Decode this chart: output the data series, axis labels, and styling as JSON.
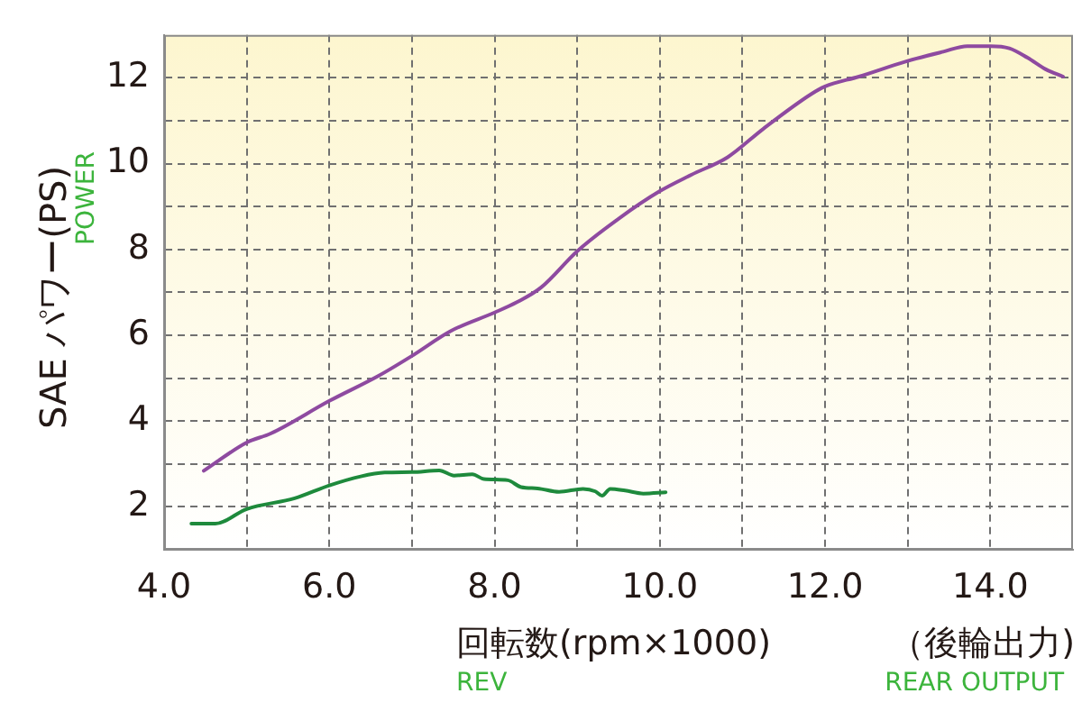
{
  "chart_data": {
    "type": "line",
    "ylabel": "SAE パワー(PS)",
    "xlabel": "回転数(rpm×1000)",
    "annotations": [
      "POWER",
      "（後輪出力)",
      "REV",
      "REAR OUTPUT"
    ],
    "xlim": [
      4,
      15
    ],
    "ylim": [
      1,
      13
    ],
    "xticks": [
      {
        "value": 4,
        "label": "4.0"
      },
      {
        "value": 5,
        "label": null
      },
      {
        "value": 6,
        "label": "6.0"
      },
      {
        "value": 7,
        "label": null
      },
      {
        "value": 8,
        "label": "8.0"
      },
      {
        "value": 9,
        "label": null
      },
      {
        "value": 10,
        "label": "10.0"
      },
      {
        "value": 11,
        "label": null
      },
      {
        "value": 12,
        "label": "12.0"
      },
      {
        "value": 13,
        "label": null
      },
      {
        "value": 14,
        "label": "14.0"
      }
    ],
    "yticks": [
      {
        "value": 1,
        "label": null
      },
      2,
      {
        "value": 3,
        "label": null
      },
      4,
      {
        "value": 5,
        "label": null
      },
      6,
      {
        "value": 7,
        "label": null
      },
      8,
      {
        "value": 9,
        "label": null
      },
      10,
      {
        "value": 11,
        "label": null
      },
      12
    ],
    "grid": true,
    "legend": false,
    "marker": "none",
    "line_style": "solid",
    "series": [
      {
        "color": "#8e4aa0",
        "x": [
          4.48,
          5.0,
          5.29,
          6.0,
          6.6,
          7.0,
          7.47,
          8.0,
          8.27,
          8.56,
          9.0,
          9.51,
          10.0,
          10.38,
          10.82,
          11.25,
          11.83,
          12.0,
          12.41,
          12.99,
          13.43,
          13.72,
          14.0,
          14.23,
          14.45,
          14.67,
          14.88
        ],
        "values": [
          2.84,
          3.5,
          3.71,
          4.47,
          5.06,
          5.52,
          6.1,
          6.53,
          6.77,
          7.11,
          7.96,
          8.73,
          9.36,
          9.74,
          10.15,
          10.81,
          11.62,
          11.8,
          12.03,
          12.39,
          12.61,
          12.74,
          12.74,
          12.69,
          12.47,
          12.2,
          12.03
        ]
      },
      {
        "color": "#1e8a3c",
        "x": [
          4.33,
          4.62,
          5.0,
          5.58,
          6.0,
          6.38,
          6.67,
          7.0,
          7.33,
          7.51,
          7.73,
          7.87,
          8.16,
          8.32,
          8.52,
          8.78,
          9.07,
          9.22,
          9.3,
          9.4,
          9.58,
          9.8,
          10.07
        ],
        "values": [
          1.61,
          1.61,
          1.95,
          2.2,
          2.5,
          2.71,
          2.8,
          2.81,
          2.85,
          2.73,
          2.76,
          2.65,
          2.62,
          2.46,
          2.43,
          2.35,
          2.42,
          2.36,
          2.26,
          2.42,
          2.38,
          2.31,
          2.34
        ]
      }
    ]
  }
}
